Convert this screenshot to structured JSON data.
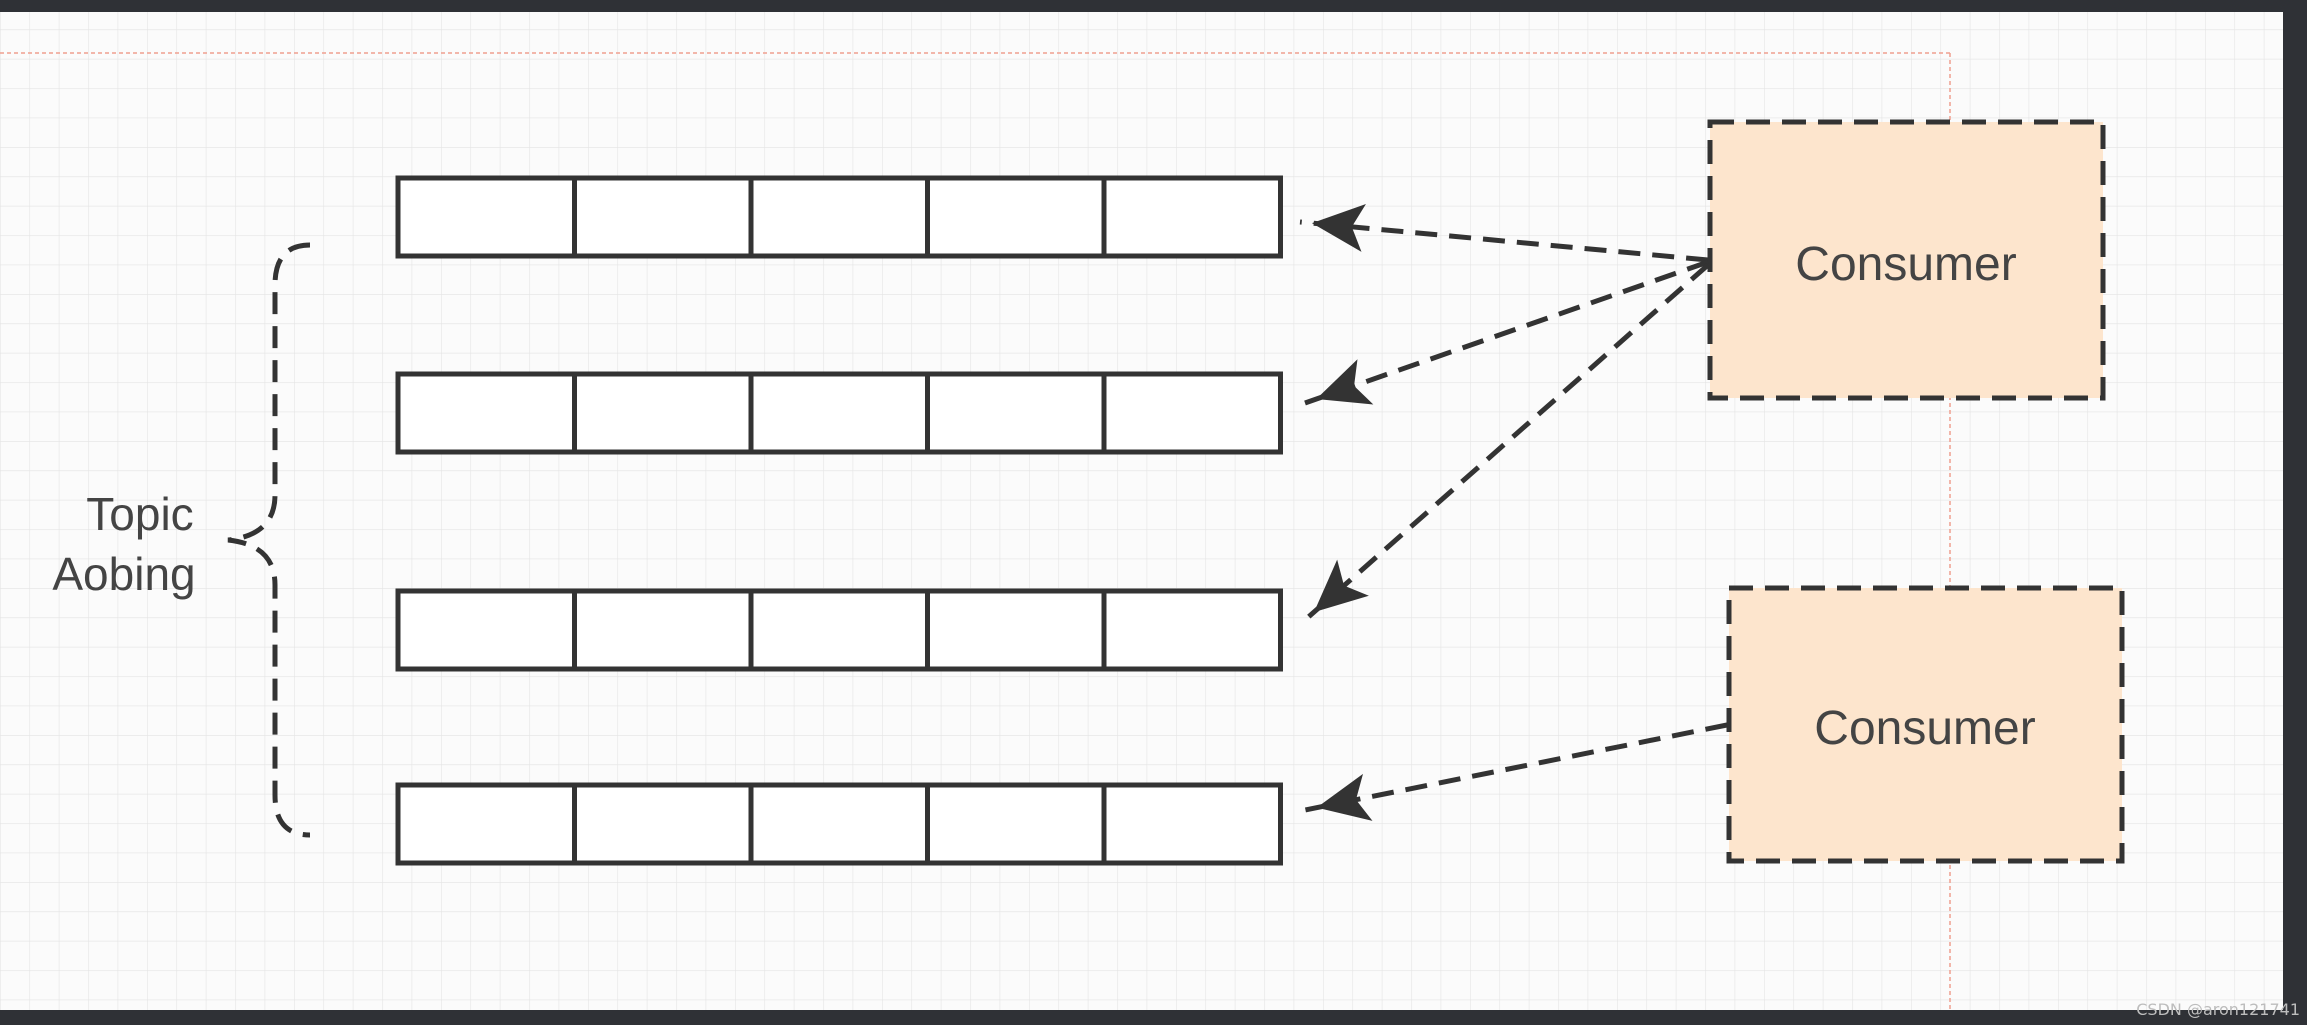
{
  "topic": {
    "line1": "Topic",
    "line2": "Aobing"
  },
  "consumers": [
    {
      "label": "Consumer"
    },
    {
      "label": "Consumer"
    }
  ],
  "watermark": "CSDN @aron121741",
  "colors": {
    "canvas": "#fbfbfb",
    "grid": "#e4e4e4",
    "outer_frame": "#2f3136",
    "consumer_fill": "#fde5cd",
    "stroke": "#333333",
    "guide": "#f0a090"
  }
}
